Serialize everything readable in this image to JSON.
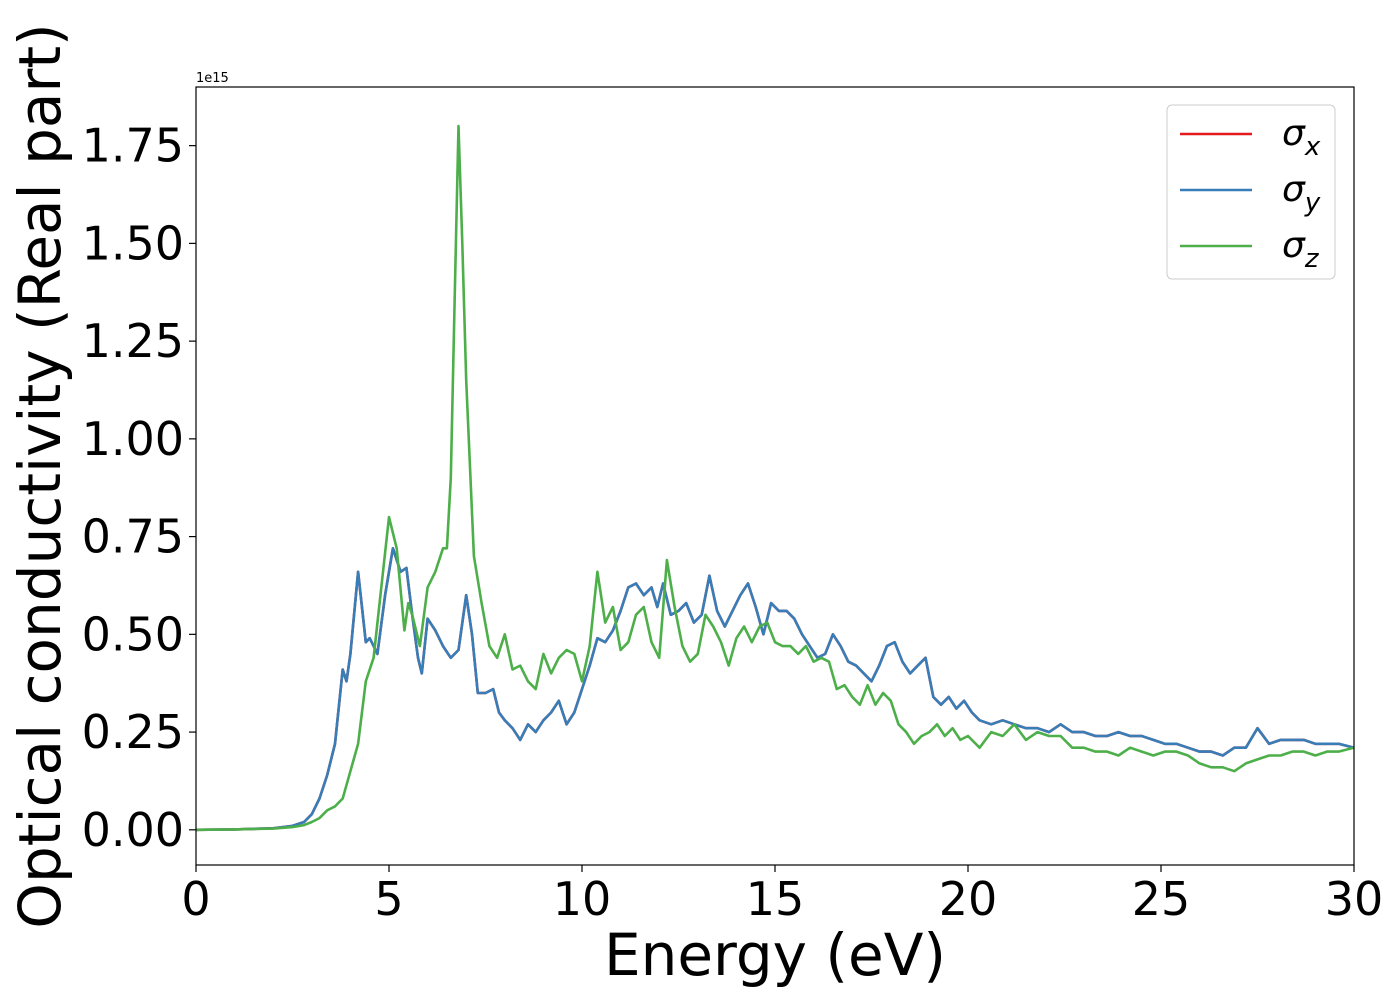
{
  "chart_data": {
    "type": "line",
    "title": "",
    "xlabel": "Energy (eV)",
    "ylabel": "Optical conductivity (Real part)",
    "y_offset_text": "1e15",
    "xlim": [
      0,
      30
    ],
    "ylim": [
      -0.09,
      1.9
    ],
    "y_scale": 1000000000000000.0,
    "xticks": [
      0,
      5,
      10,
      15,
      20,
      25,
      30
    ],
    "xtick_labels": [
      "0",
      "5",
      "10",
      "15",
      "20",
      "25",
      "30"
    ],
    "yticks": [
      0.0,
      0.25,
      0.5,
      0.75,
      1.0,
      1.25,
      1.5,
      1.75
    ],
    "ytick_labels": [
      "0.00",
      "0.25",
      "0.50",
      "0.75",
      "1.00",
      "1.25",
      "1.50",
      "1.75"
    ],
    "grid": false,
    "legend_position": "top-right",
    "series": [
      {
        "name": "σx",
        "label_main": "σ",
        "label_sub": "x",
        "color": "#e41a1c",
        "x": [
          0,
          1,
          2,
          2.5,
          2.8,
          3.0,
          3.2,
          3.4,
          3.6,
          3.8,
          3.9,
          4.0,
          4.2,
          4.4,
          4.5,
          4.6,
          4.7,
          4.9,
          5.1,
          5.3,
          5.45,
          5.6,
          5.75,
          5.85,
          6.0,
          6.2,
          6.4,
          6.6,
          6.8,
          7.0,
          7.15,
          7.3,
          7.5,
          7.7,
          7.85,
          8.0,
          8.2,
          8.4,
          8.6,
          8.8,
          9.0,
          9.2,
          9.4,
          9.6,
          9.8,
          10.0,
          10.2,
          10.4,
          10.6,
          10.8,
          11.0,
          11.2,
          11.4,
          11.6,
          11.8,
          11.95,
          12.1,
          12.3,
          12.5,
          12.7,
          12.9,
          13.1,
          13.3,
          13.5,
          13.7,
          13.9,
          14.1,
          14.3,
          14.5,
          14.7,
          14.9,
          15.1,
          15.3,
          15.5,
          15.7,
          15.9,
          16.1,
          16.3,
          16.5,
          16.7,
          16.9,
          17.1,
          17.3,
          17.5,
          17.7,
          17.9,
          18.1,
          18.3,
          18.5,
          18.7,
          18.9,
          19.1,
          19.3,
          19.5,
          19.7,
          19.9,
          20.1,
          20.3,
          20.6,
          20.9,
          21.2,
          21.5,
          21.8,
          22.1,
          22.4,
          22.7,
          23.0,
          23.3,
          23.6,
          23.9,
          24.2,
          24.5,
          24.8,
          25.1,
          25.4,
          25.7,
          26.0,
          26.3,
          26.6,
          26.9,
          27.2,
          27.5,
          27.8,
          28.1,
          28.4,
          28.7,
          29.0,
          29.3,
          29.6,
          30.0
        ],
        "y": [
          0,
          0.001,
          0.004,
          0.01,
          0.02,
          0.04,
          0.08,
          0.14,
          0.22,
          0.41,
          0.38,
          0.45,
          0.66,
          0.48,
          0.49,
          0.47,
          0.45,
          0.6,
          0.72,
          0.66,
          0.67,
          0.55,
          0.44,
          0.4,
          0.54,
          0.51,
          0.47,
          0.44,
          0.46,
          0.6,
          0.5,
          0.35,
          0.35,
          0.36,
          0.3,
          0.28,
          0.26,
          0.23,
          0.27,
          0.25,
          0.28,
          0.3,
          0.33,
          0.27,
          0.3,
          0.36,
          0.42,
          0.49,
          0.48,
          0.51,
          0.56,
          0.62,
          0.63,
          0.6,
          0.62,
          0.57,
          0.63,
          0.55,
          0.56,
          0.58,
          0.53,
          0.55,
          0.65,
          0.56,
          0.52,
          0.56,
          0.6,
          0.63,
          0.57,
          0.5,
          0.58,
          0.56,
          0.56,
          0.54,
          0.5,
          0.47,
          0.44,
          0.45,
          0.5,
          0.47,
          0.43,
          0.42,
          0.4,
          0.38,
          0.42,
          0.47,
          0.48,
          0.43,
          0.4,
          0.42,
          0.44,
          0.34,
          0.32,
          0.34,
          0.31,
          0.33,
          0.3,
          0.28,
          0.27,
          0.28,
          0.27,
          0.26,
          0.26,
          0.25,
          0.27,
          0.25,
          0.25,
          0.24,
          0.24,
          0.25,
          0.24,
          0.24,
          0.23,
          0.22,
          0.22,
          0.21,
          0.2,
          0.2,
          0.19,
          0.21,
          0.21,
          0.26,
          0.22,
          0.23,
          0.23,
          0.23,
          0.22,
          0.22,
          0.22,
          0.21
        ]
      },
      {
        "name": "σy",
        "label_main": "σ",
        "label_sub": "y",
        "color": "#377eb8",
        "x": [
          0,
          1,
          2,
          2.5,
          2.8,
          3.0,
          3.2,
          3.4,
          3.6,
          3.8,
          3.9,
          4.0,
          4.2,
          4.4,
          4.5,
          4.6,
          4.7,
          4.9,
          5.1,
          5.3,
          5.45,
          5.6,
          5.75,
          5.85,
          6.0,
          6.2,
          6.4,
          6.6,
          6.8,
          7.0,
          7.15,
          7.3,
          7.5,
          7.7,
          7.85,
          8.0,
          8.2,
          8.4,
          8.6,
          8.8,
          9.0,
          9.2,
          9.4,
          9.6,
          9.8,
          10.0,
          10.2,
          10.4,
          10.6,
          10.8,
          11.0,
          11.2,
          11.4,
          11.6,
          11.8,
          11.95,
          12.1,
          12.3,
          12.5,
          12.7,
          12.9,
          13.1,
          13.3,
          13.5,
          13.7,
          13.9,
          14.1,
          14.3,
          14.5,
          14.7,
          14.9,
          15.1,
          15.3,
          15.5,
          15.7,
          15.9,
          16.1,
          16.3,
          16.5,
          16.7,
          16.9,
          17.1,
          17.3,
          17.5,
          17.7,
          17.9,
          18.1,
          18.3,
          18.5,
          18.7,
          18.9,
          19.1,
          19.3,
          19.5,
          19.7,
          19.9,
          20.1,
          20.3,
          20.6,
          20.9,
          21.2,
          21.5,
          21.8,
          22.1,
          22.4,
          22.7,
          23.0,
          23.3,
          23.6,
          23.9,
          24.2,
          24.5,
          24.8,
          25.1,
          25.4,
          25.7,
          26.0,
          26.3,
          26.6,
          26.9,
          27.2,
          27.5,
          27.8,
          28.1,
          28.4,
          28.7,
          29.0,
          29.3,
          29.6,
          30.0
        ],
        "y": [
          0,
          0.001,
          0.004,
          0.01,
          0.02,
          0.04,
          0.08,
          0.14,
          0.22,
          0.41,
          0.38,
          0.45,
          0.66,
          0.48,
          0.49,
          0.47,
          0.45,
          0.6,
          0.72,
          0.66,
          0.67,
          0.55,
          0.44,
          0.4,
          0.54,
          0.51,
          0.47,
          0.44,
          0.46,
          0.6,
          0.5,
          0.35,
          0.35,
          0.36,
          0.3,
          0.28,
          0.26,
          0.23,
          0.27,
          0.25,
          0.28,
          0.3,
          0.33,
          0.27,
          0.3,
          0.36,
          0.42,
          0.49,
          0.48,
          0.51,
          0.56,
          0.62,
          0.63,
          0.6,
          0.62,
          0.57,
          0.63,
          0.55,
          0.56,
          0.58,
          0.53,
          0.55,
          0.65,
          0.56,
          0.52,
          0.56,
          0.6,
          0.63,
          0.57,
          0.5,
          0.58,
          0.56,
          0.56,
          0.54,
          0.5,
          0.47,
          0.44,
          0.45,
          0.5,
          0.47,
          0.43,
          0.42,
          0.4,
          0.38,
          0.42,
          0.47,
          0.48,
          0.43,
          0.4,
          0.42,
          0.44,
          0.34,
          0.32,
          0.34,
          0.31,
          0.33,
          0.3,
          0.28,
          0.27,
          0.28,
          0.27,
          0.26,
          0.26,
          0.25,
          0.27,
          0.25,
          0.25,
          0.24,
          0.24,
          0.25,
          0.24,
          0.24,
          0.23,
          0.22,
          0.22,
          0.21,
          0.2,
          0.2,
          0.19,
          0.21,
          0.21,
          0.26,
          0.22,
          0.23,
          0.23,
          0.23,
          0.22,
          0.22,
          0.22,
          0.21
        ]
      },
      {
        "name": "σz",
        "label_main": "σ",
        "label_sub": "z",
        "color": "#4daf4a",
        "x": [
          0,
          1,
          2,
          2.5,
          2.8,
          3.0,
          3.2,
          3.4,
          3.6,
          3.8,
          4.0,
          4.2,
          4.4,
          4.6,
          4.8,
          5.0,
          5.2,
          5.4,
          5.5,
          5.6,
          5.8,
          6.0,
          6.2,
          6.4,
          6.5,
          6.6,
          6.7,
          6.8,
          6.9,
          7.0,
          7.2,
          7.4,
          7.6,
          7.8,
          8.0,
          8.2,
          8.4,
          8.6,
          8.8,
          9.0,
          9.2,
          9.4,
          9.6,
          9.8,
          10.0,
          10.2,
          10.4,
          10.6,
          10.8,
          11.0,
          11.2,
          11.4,
          11.6,
          11.8,
          12.0,
          12.2,
          12.4,
          12.6,
          12.8,
          13.0,
          13.2,
          13.4,
          13.6,
          13.8,
          14.0,
          14.2,
          14.4,
          14.6,
          14.8,
          15.0,
          15.2,
          15.4,
          15.6,
          15.8,
          16.0,
          16.2,
          16.4,
          16.6,
          16.8,
          17.0,
          17.2,
          17.4,
          17.6,
          17.8,
          18.0,
          18.2,
          18.4,
          18.6,
          18.8,
          19.0,
          19.2,
          19.4,
          19.6,
          19.8,
          20.0,
          20.3,
          20.6,
          20.9,
          21.2,
          21.5,
          21.8,
          22.1,
          22.4,
          22.7,
          23.0,
          23.3,
          23.6,
          23.9,
          24.2,
          24.5,
          24.8,
          25.1,
          25.4,
          25.7,
          26.0,
          26.3,
          26.6,
          26.9,
          27.2,
          27.5,
          27.8,
          28.1,
          28.4,
          28.7,
          29.0,
          29.3,
          29.6,
          30.0
        ],
        "y": [
          0,
          0.001,
          0.003,
          0.007,
          0.012,
          0.02,
          0.03,
          0.05,
          0.06,
          0.08,
          0.15,
          0.22,
          0.38,
          0.44,
          0.62,
          0.8,
          0.72,
          0.51,
          0.58,
          0.55,
          0.47,
          0.62,
          0.66,
          0.72,
          0.72,
          0.9,
          1.35,
          1.8,
          1.5,
          1.15,
          0.7,
          0.58,
          0.47,
          0.44,
          0.5,
          0.41,
          0.42,
          0.38,
          0.36,
          0.45,
          0.4,
          0.44,
          0.46,
          0.45,
          0.38,
          0.47,
          0.66,
          0.53,
          0.57,
          0.46,
          0.48,
          0.55,
          0.57,
          0.48,
          0.44,
          0.69,
          0.57,
          0.47,
          0.43,
          0.45,
          0.55,
          0.52,
          0.48,
          0.42,
          0.49,
          0.52,
          0.48,
          0.52,
          0.53,
          0.48,
          0.47,
          0.47,
          0.45,
          0.47,
          0.43,
          0.44,
          0.43,
          0.36,
          0.37,
          0.34,
          0.32,
          0.37,
          0.32,
          0.35,
          0.33,
          0.27,
          0.25,
          0.22,
          0.24,
          0.25,
          0.27,
          0.24,
          0.26,
          0.23,
          0.24,
          0.21,
          0.25,
          0.24,
          0.27,
          0.23,
          0.25,
          0.24,
          0.24,
          0.21,
          0.21,
          0.2,
          0.2,
          0.19,
          0.21,
          0.2,
          0.19,
          0.2,
          0.2,
          0.19,
          0.17,
          0.16,
          0.16,
          0.15,
          0.17,
          0.18,
          0.19,
          0.19,
          0.2,
          0.2,
          0.19,
          0.2,
          0.2,
          0.21
        ]
      }
    ]
  }
}
